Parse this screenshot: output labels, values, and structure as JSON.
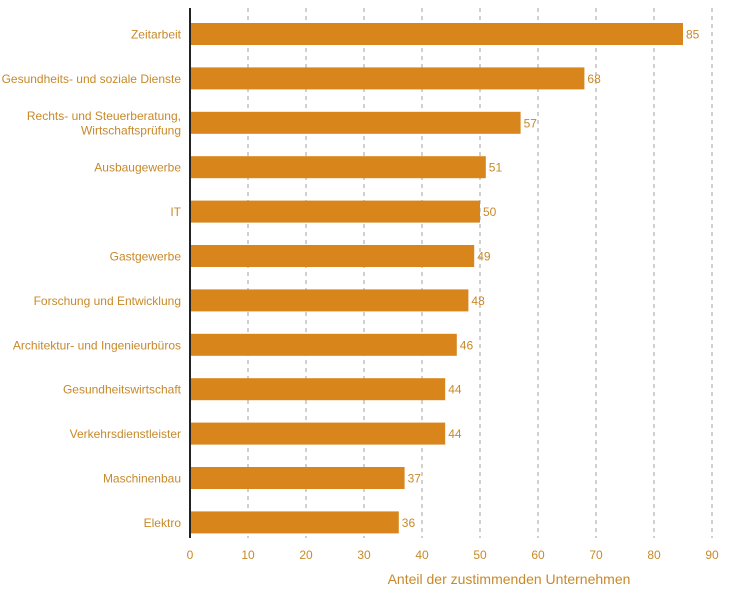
{
  "chart_data": {
    "type": "bar",
    "orientation": "horizontal",
    "categories": [
      [
        "Zeitarbeit"
      ],
      [
        "Gesundheits- und soziale Dienste"
      ],
      [
        "Rechts- und Steuerberatung,",
        "Wirtschaftsprüfung"
      ],
      [
        "Ausbaugewerbe"
      ],
      [
        "IT"
      ],
      [
        "Gastgewerbe"
      ],
      [
        "Forschung und Entwicklung"
      ],
      [
        "Architektur- und Ingenieurbüros"
      ],
      [
        "Gesundheitswirtschaft"
      ],
      [
        "Verkehrsdienstleister"
      ],
      [
        "Maschinenbau"
      ],
      [
        "Elektro"
      ]
    ],
    "values": [
      85,
      68,
      57,
      51,
      50,
      49,
      48,
      46,
      44,
      44,
      37,
      36
    ],
    "xlabel": "Anteil der zustimmenden Unternehmen",
    "ylabel": "",
    "xlim": [
      0,
      90
    ],
    "xticks": [
      0,
      10,
      20,
      30,
      40,
      50,
      60,
      70,
      80,
      90
    ],
    "grid": "vertical dashed",
    "bar_color": "#d8861c",
    "text_color": "#c8892a",
    "axis_color": "#222222",
    "grid_color": "#a0a0a0"
  }
}
